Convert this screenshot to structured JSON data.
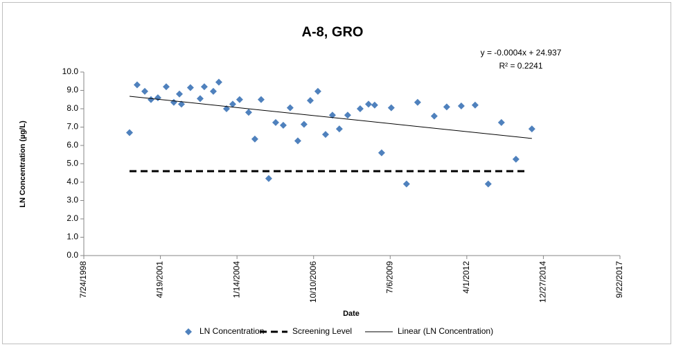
{
  "chart_data": {
    "type": "scatter",
    "title": "A-8, GRO",
    "x_label": "Date",
    "y_label": "LN Concentration (µg/L)",
    "annotations": [
      "y = -0.0004x + 24.937",
      "R² = 0.2241"
    ],
    "xlim": [
      36000,
      43000
    ],
    "xticks": [
      {
        "value": 36000,
        "label": "7/24/1998"
      },
      {
        "value": 37000,
        "label": "4/19/2001"
      },
      {
        "value": 38000,
        "label": "1/14/2004"
      },
      {
        "value": 39000,
        "label": "10/10/2006"
      },
      {
        "value": 40000,
        "label": "7/6/2009"
      },
      {
        "value": 41000,
        "label": "4/1/2012"
      },
      {
        "value": 42000,
        "label": "12/27/2014"
      },
      {
        "value": 43000,
        "label": "9/22/2017"
      }
    ],
    "ylim": [
      0,
      10
    ],
    "yticks": [
      {
        "value": 0,
        "label": "0.0"
      },
      {
        "value": 1,
        "label": "1.0"
      },
      {
        "value": 2,
        "label": "2.0"
      },
      {
        "value": 3,
        "label": "3.0"
      },
      {
        "value": 4,
        "label": "4.0"
      },
      {
        "value": 5,
        "label": "5.0"
      },
      {
        "value": 6,
        "label": "6.0"
      },
      {
        "value": 7,
        "label": "7.0"
      },
      {
        "value": 8,
        "label": "8.0"
      },
      {
        "value": 9,
        "label": "9.0"
      },
      {
        "value": 10,
        "label": "10.0"
      }
    ],
    "grid": false,
    "legend": "bottom",
    "series": [
      {
        "name": "LN Concentration",
        "color": "#4f81bd",
        "marker": "diamond",
        "x": [
          36597,
          36696,
          36796,
          36877,
          36967,
          37076,
          37175,
          37248,
          37275,
          37392,
          37519,
          37573,
          37691,
          37763,
          37863,
          37944,
          38034,
          38152,
          38233,
          38315,
          38414,
          38505,
          38604,
          38694,
          38794,
          38875,
          38957,
          39056,
          39156,
          39246,
          39336,
          39445,
          39608,
          39717,
          39797,
          39888,
          40014,
          40213,
          40358,
          40575,
          40738,
          40928,
          41109,
          41280,
          41452,
          41642,
          41850
        ],
        "values": [
          6.7,
          9.3,
          8.95,
          8.5,
          8.6,
          9.2,
          8.35,
          8.8,
          8.25,
          9.15,
          8.55,
          9.2,
          8.95,
          9.45,
          8.0,
          8.25,
          8.5,
          7.8,
          6.35,
          8.5,
          4.2,
          7.25,
          7.1,
          8.05,
          6.25,
          7.15,
          8.45,
          8.95,
          6.6,
          7.65,
          6.9,
          7.65,
          8.0,
          8.25,
          8.2,
          5.6,
          8.05,
          3.9,
          8.35,
          7.6,
          8.1,
          8.15,
          8.2,
          3.9,
          7.25,
          5.25,
          6.9
        ]
      },
      {
        "name": "Screening Level",
        "color": "#000000",
        "line_style": "dashed",
        "line_width": 3,
        "x": [
          36597,
          41780
        ],
        "values": [
          4.6,
          4.6
        ]
      },
      {
        "name": "Linear (LN Concentration)",
        "color": "#000000",
        "line_style": "solid",
        "line_width": 1,
        "x": [
          36597,
          41850
        ],
        "values": [
          8.68,
          6.38
        ]
      }
    ]
  }
}
